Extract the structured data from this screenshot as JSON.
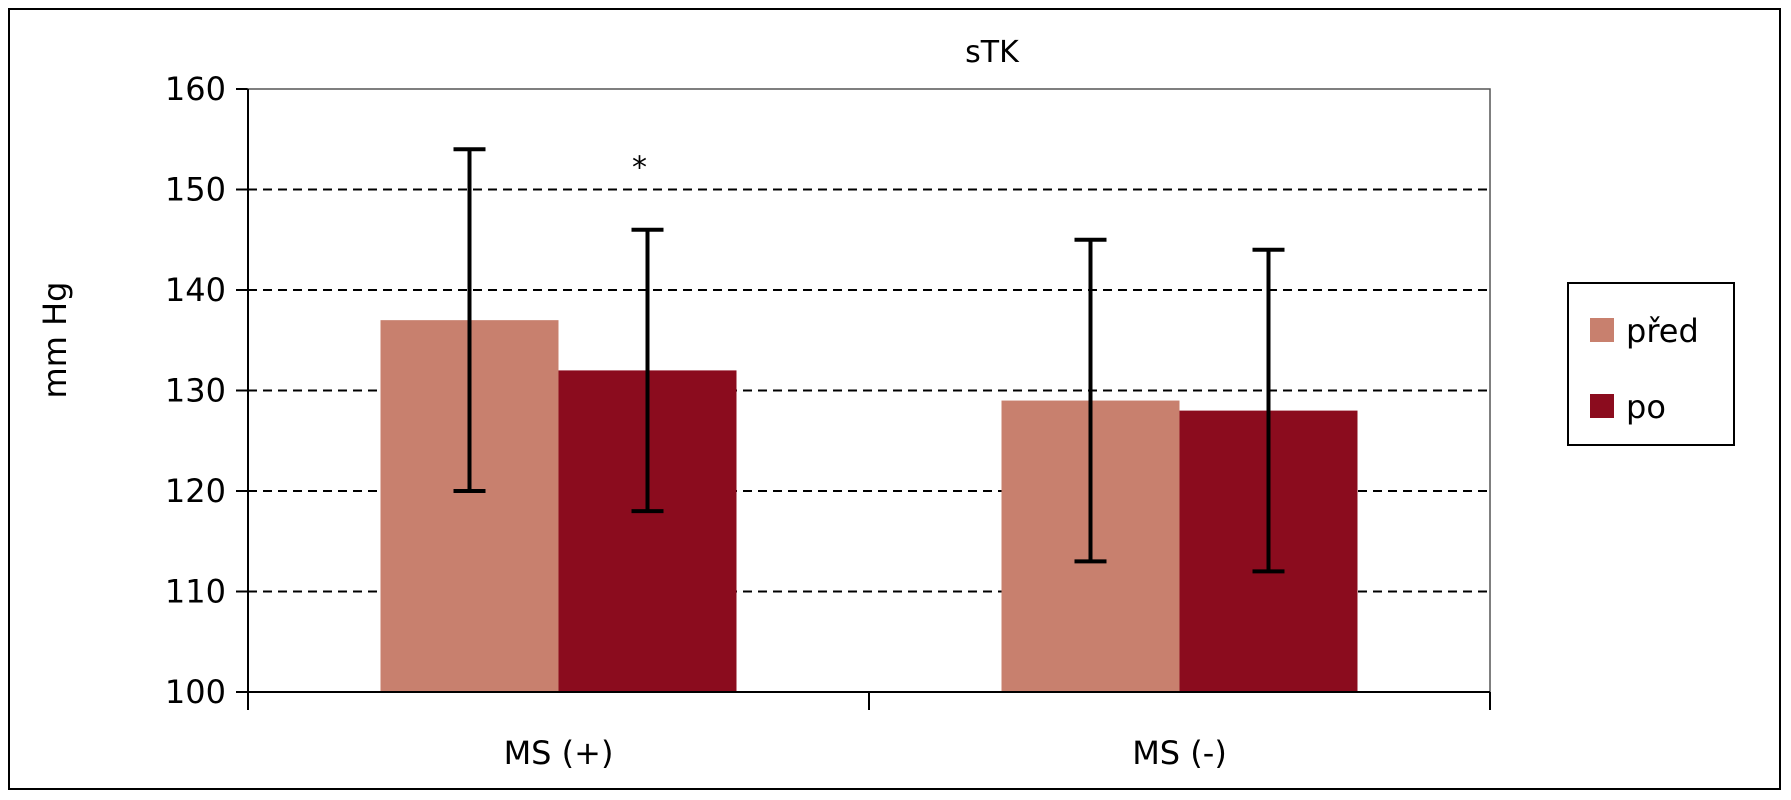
{
  "chart_data": {
    "type": "bar",
    "title": "sTK",
    "xlabel": "",
    "ylabel": "mm Hg",
    "ylim": [
      100,
      160
    ],
    "yticks": [
      100,
      110,
      120,
      130,
      140,
      150,
      160
    ],
    "categories": [
      "MS (+)",
      "MS  (-)"
    ],
    "series": [
      {
        "name": "před",
        "color": "#c8806e",
        "values": [
          137,
          129
        ],
        "error_low": [
          120,
          113
        ],
        "error_high": [
          154,
          145
        ]
      },
      {
        "name": "po",
        "color": "#8b0c1e",
        "values": [
          132,
          128
        ],
        "error_low": [
          118,
          112
        ],
        "error_high": [
          146,
          144
        ]
      }
    ],
    "annotations": [
      {
        "text": "*",
        "category": 0,
        "series": 1,
        "y": 153
      }
    ],
    "grid": "dashed horizontal",
    "legend": "right"
  }
}
